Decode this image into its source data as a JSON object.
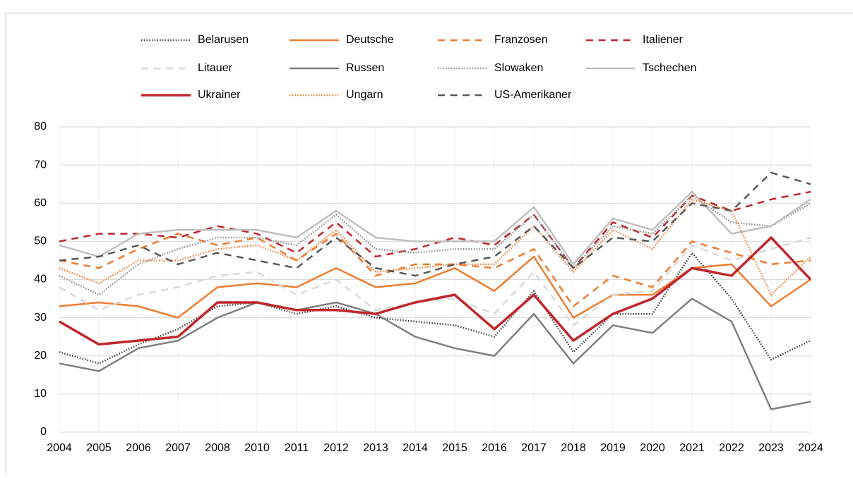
{
  "chart_data": {
    "type": "line",
    "categories": [
      "2004",
      "2005",
      "2006",
      "2007",
      "2008",
      "2010",
      "2011",
      "2012",
      "2013",
      "2014",
      "2015",
      "2016",
      "2017",
      "2018",
      "2019",
      "2020",
      "2021",
      "2022",
      "2023",
      "2024"
    ],
    "ylim": [
      0,
      80
    ],
    "yticks": [
      0,
      10,
      20,
      30,
      40,
      50,
      60,
      70,
      80
    ],
    "grid": true,
    "series": [
      {
        "name": "Belarusen",
        "color": "#404040",
        "dash": "dotted",
        "width": 2.5,
        "values": [
          21,
          18,
          23,
          27,
          33,
          34,
          31,
          33,
          30,
          29,
          28,
          25,
          37,
          21,
          31,
          31,
          47,
          35,
          19,
          24
        ]
      },
      {
        "name": "Deutsche",
        "color": "#ed7d31",
        "dash": "solid",
        "width": 2.5,
        "values": [
          33,
          34,
          33,
          30,
          38,
          39,
          38,
          43,
          38,
          39,
          43,
          37,
          46,
          30,
          36,
          36,
          43,
          44,
          33,
          40
        ]
      },
      {
        "name": "Franzosen",
        "color": "#ed7d31",
        "dash": "dashed",
        "width": 2.5,
        "values": [
          45,
          43,
          48,
          52,
          49,
          51,
          45,
          52,
          41,
          44,
          44,
          43,
          48,
          33,
          41,
          38,
          50,
          47,
          44,
          45
        ]
      },
      {
        "name": "Italiener",
        "color": "#c0262d",
        "dash": "dashed",
        "width": 2.5,
        "values": [
          50,
          52,
          52,
          51,
          54,
          52,
          47,
          55,
          46,
          48,
          51,
          49,
          57,
          43,
          55,
          51,
          62,
          58,
          61,
          63
        ]
      },
      {
        "name": "Litauer",
        "color": "#d9d9d9",
        "dash": "dashed",
        "width": 2.5,
        "values": [
          38,
          32,
          36,
          38,
          41,
          42,
          36,
          40,
          32,
          34,
          35,
          31,
          42,
          28,
          36,
          37,
          49,
          45,
          48,
          51
        ]
      },
      {
        "name": "Russen",
        "color": "#7f7f7f",
        "dash": "solid",
        "width": 2.5,
        "values": [
          18,
          16,
          22,
          24,
          30,
          34,
          32,
          34,
          31,
          25,
          22,
          20,
          31,
          18,
          28,
          26,
          35,
          29,
          6,
          8
        ]
      },
      {
        "name": "Slowaken",
        "color": "#8c8c8c",
        "dash": "dotted",
        "width": 2.5,
        "values": [
          41,
          36,
          44,
          48,
          51,
          51,
          49,
          57,
          48,
          47,
          48,
          48,
          57,
          43,
          54,
          52,
          62,
          55,
          54,
          60
        ]
      },
      {
        "name": "Tschechen",
        "color": "#bfbfbf",
        "dash": "solid",
        "width": 2.5,
        "values": [
          49,
          46,
          52,
          53,
          53,
          53,
          51,
          58,
          51,
          50,
          50,
          50,
          59,
          44,
          56,
          53,
          63,
          52,
          54,
          61
        ]
      },
      {
        "name": "Ukrainer",
        "color": "#c0262d",
        "dash": "solid",
        "width": 3.5,
        "values": [
          29,
          23,
          24,
          25,
          34,
          34,
          32,
          32,
          31,
          34,
          36,
          27,
          36,
          24,
          31,
          35,
          43,
          41,
          51,
          40
        ]
      },
      {
        "name": "Ungarn",
        "color": "#ed7d31",
        "dash": "dotted",
        "width": 2.5,
        "values": [
          43,
          39,
          45,
          45,
          48,
          49,
          45,
          53,
          42,
          43,
          44,
          44,
          54,
          42,
          53,
          48,
          61,
          58,
          36,
          46
        ]
      },
      {
        "name": "US-Amerikaner",
        "color": "#595959",
        "dash": "dashed",
        "width": 2.5,
        "values": [
          45,
          46,
          49,
          44,
          47,
          45,
          43,
          51,
          43,
          41,
          44,
          46,
          54,
          43,
          51,
          50,
          60,
          58,
          68,
          65
        ]
      }
    ]
  }
}
